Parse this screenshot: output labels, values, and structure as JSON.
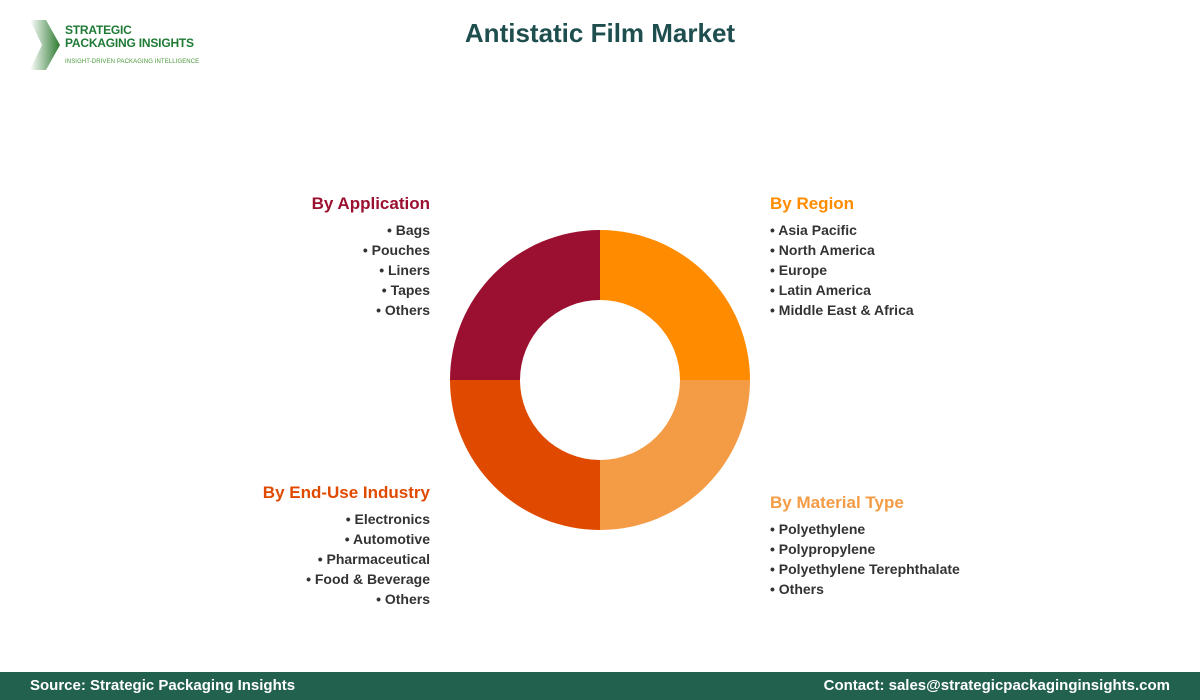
{
  "logo": {
    "name_line1": "STRATEGIC",
    "name_line2": "PACKAGING INSIGHTS",
    "tagline": "INSIGHT-DRIVEN PACKAGING INTELLIGENCE"
  },
  "title": "Antistatic Film Market",
  "segments": [
    {
      "heading": "By Region",
      "color": "#FF8C00",
      "items": [
        "Asia Pacific",
        "North America",
        "Europe",
        "Latin America",
        "Middle East & Africa"
      ]
    },
    {
      "heading": "By Material Type",
      "color": "#F39B45",
      "items": [
        "Polyethylene",
        "Polypropylene",
        "Polyethylene Terephthalate",
        "Others"
      ]
    },
    {
      "heading": "By End-Use Industry",
      "color": "#E04A00",
      "items": [
        "Electronics",
        "Automotive",
        "Pharmaceutical",
        "Food & Beverage",
        "Others"
      ]
    },
    {
      "heading": "By Application",
      "color": "#9B1030",
      "items": [
        "Bags",
        "Pouches",
        "Liners",
        "Tapes",
        "Others"
      ]
    }
  ],
  "footer": {
    "source": "Source: Strategic Packaging Insights",
    "contact": "Contact: sales@strategicpackaginginsights.com"
  }
}
